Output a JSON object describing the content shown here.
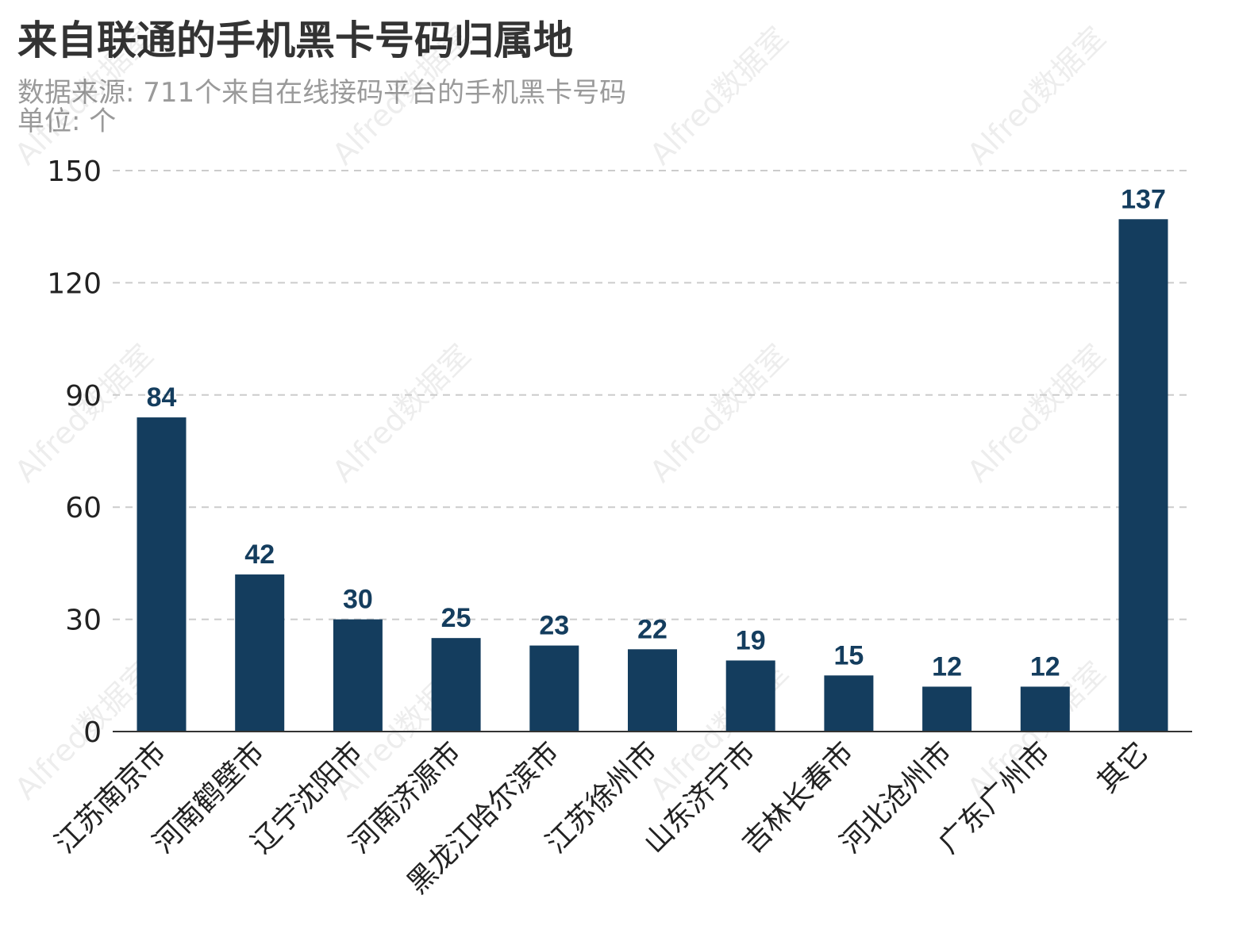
{
  "header": {
    "title": "来自联通的手机黑卡号码归属地",
    "subtitle": "数据来源: 711个来自在线接码平台的手机黑卡号码",
    "unit": "单位: 个"
  },
  "watermark": {
    "text": "Alfred数据室"
  },
  "colors": {
    "bar": "#143d5e",
    "label": "#143d5e",
    "grid": "#cccccc",
    "axis": "#333333"
  },
  "chart_data": {
    "type": "bar",
    "title": "来自联通的手机黑卡号码归属地",
    "subtitle": "数据来源: 711个来自在线接码平台的手机黑卡号码",
    "unit": "单位: 个",
    "xlabel": "",
    "ylabel": "",
    "categories": [
      "江苏南京市",
      "河南鹤壁市",
      "辽宁沈阳市",
      "河南济源市",
      "黑龙江哈尔滨市",
      "江苏徐州市",
      "山东济宁市",
      "吉林长春市",
      "河北沧州市",
      "广东广州市",
      "其它"
    ],
    "values": [
      84,
      42,
      30,
      25,
      23,
      22,
      19,
      15,
      12,
      12,
      137
    ],
    "ylim": [
      0,
      150
    ],
    "yticks": [
      0,
      30,
      60,
      90,
      120,
      150
    ],
    "grid": true,
    "grid_style": "dashed",
    "legend": false
  }
}
